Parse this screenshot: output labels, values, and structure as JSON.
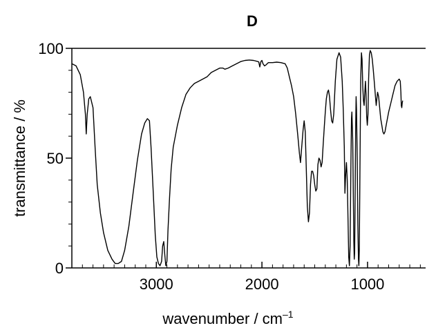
{
  "chart_data": {
    "type": "line",
    "title": "D",
    "xlabel": "wavenumber / cm",
    "xlabel_superscript": "–1",
    "ylabel": "transmittance / %",
    "x_reversed": true,
    "xlim": [
      3800,
      450
    ],
    "ylim": [
      0,
      100
    ],
    "x_ticks": [
      3000,
      2000,
      1000
    ],
    "x_tick_labels": [
      "3000",
      "2000",
      "1000"
    ],
    "x_minor_step": 100,
    "y_ticks": [
      0,
      50,
      100
    ],
    "y_tick_labels": [
      "0",
      "50",
      "100"
    ],
    "y_minor_step": 10,
    "grid": false,
    "legend": "none",
    "line_color": "#000000",
    "series": [
      {
        "values": [
          [
            3800,
            93
          ],
          [
            3760,
            92
          ],
          [
            3720,
            88
          ],
          [
            3690,
            80
          ],
          [
            3672,
            70
          ],
          [
            3664,
            61
          ],
          [
            3655,
            70
          ],
          [
            3640,
            77
          ],
          [
            3625,
            78
          ],
          [
            3600,
            73
          ],
          [
            3580,
            55
          ],
          [
            3560,
            38
          ],
          [
            3530,
            25
          ],
          [
            3500,
            16
          ],
          [
            3460,
            8
          ],
          [
            3420,
            4
          ],
          [
            3390,
            2
          ],
          [
            3360,
            2
          ],
          [
            3330,
            3
          ],
          [
            3300,
            8
          ],
          [
            3260,
            19
          ],
          [
            3220,
            34
          ],
          [
            3180,
            49
          ],
          [
            3140,
            61
          ],
          [
            3110,
            66
          ],
          [
            3085,
            68
          ],
          [
            3065,
            67
          ],
          [
            3050,
            55
          ],
          [
            3030,
            35
          ],
          [
            3010,
            15
          ],
          [
            2995,
            5
          ],
          [
            2980,
            2
          ],
          [
            2965,
            1
          ],
          [
            2950,
            3
          ],
          [
            2940,
            10
          ],
          [
            2930,
            12
          ],
          [
            2920,
            6
          ],
          [
            2910,
            1
          ],
          [
            2900,
            3
          ],
          [
            2890,
            17
          ],
          [
            2875,
            32
          ],
          [
            2860,
            45
          ],
          [
            2840,
            55
          ],
          [
            2800,
            65
          ],
          [
            2760,
            73
          ],
          [
            2720,
            79
          ],
          [
            2680,
            82
          ],
          [
            2640,
            84
          ],
          [
            2600,
            85
          ],
          [
            2560,
            86
          ],
          [
            2520,
            87
          ],
          [
            2480,
            89
          ],
          [
            2440,
            90
          ],
          [
            2400,
            91
          ],
          [
            2370,
            91
          ],
          [
            2350,
            90.5
          ],
          [
            2320,
            91
          ],
          [
            2280,
            92
          ],
          [
            2240,
            93
          ],
          [
            2200,
            94
          ],
          [
            2160,
            94.5
          ],
          [
            2120,
            94.7
          ],
          [
            2080,
            94.5
          ],
          [
            2040,
            94
          ],
          [
            2030,
            93.8
          ],
          [
            2020,
            91.5
          ],
          [
            2010,
            94
          ],
          [
            2000,
            94.5
          ],
          [
            1990,
            93
          ],
          [
            1975,
            92
          ],
          [
            1960,
            92.5
          ],
          [
            1940,
            93.5
          ],
          [
            1900,
            93.5
          ],
          [
            1860,
            93.7
          ],
          [
            1820,
            93.5
          ],
          [
            1780,
            93
          ],
          [
            1760,
            91
          ],
          [
            1740,
            87
          ],
          [
            1720,
            83
          ],
          [
            1700,
            78
          ],
          [
            1680,
            70
          ],
          [
            1660,
            60
          ],
          [
            1645,
            52
          ],
          [
            1635,
            48
          ],
          [
            1625,
            54
          ],
          [
            1610,
            63
          ],
          [
            1600,
            67
          ],
          [
            1590,
            62
          ],
          [
            1580,
            45
          ],
          [
            1570,
            28
          ],
          [
            1560,
            21
          ],
          [
            1550,
            25
          ],
          [
            1540,
            38
          ],
          [
            1530,
            44
          ],
          [
            1520,
            44
          ],
          [
            1510,
            42
          ],
          [
            1500,
            38
          ],
          [
            1490,
            35
          ],
          [
            1480,
            36
          ],
          [
            1470,
            47
          ],
          [
            1460,
            50
          ],
          [
            1450,
            49
          ],
          [
            1440,
            46
          ],
          [
            1430,
            48
          ],
          [
            1420,
            56
          ],
          [
            1410,
            64
          ],
          [
            1400,
            71
          ],
          [
            1390,
            77
          ],
          [
            1380,
            80
          ],
          [
            1370,
            81
          ],
          [
            1360,
            78
          ],
          [
            1350,
            72
          ],
          [
            1340,
            67
          ],
          [
            1330,
            66
          ],
          [
            1320,
            70
          ],
          [
            1305,
            85
          ],
          [
            1290,
            95
          ],
          [
            1270,
            98
          ],
          [
            1255,
            96
          ],
          [
            1240,
            85
          ],
          [
            1230,
            72
          ],
          [
            1220,
            55
          ],
          [
            1214,
            34
          ],
          [
            1208,
            42
          ],
          [
            1200,
            48
          ],
          [
            1192,
            40
          ],
          [
            1185,
            22
          ],
          [
            1178,
            5
          ],
          [
            1172,
            1
          ],
          [
            1165,
            10
          ],
          [
            1158,
            45
          ],
          [
            1152,
            68
          ],
          [
            1148,
            71
          ],
          [
            1140,
            58
          ],
          [
            1135,
            35
          ],
          [
            1130,
            12
          ],
          [
            1126,
            4
          ],
          [
            1122,
            7
          ],
          [
            1118,
            30
          ],
          [
            1112,
            65
          ],
          [
            1108,
            78
          ],
          [
            1104,
            72
          ],
          [
            1098,
            50
          ],
          [
            1092,
            20
          ],
          [
            1086,
            4
          ],
          [
            1082,
            1
          ],
          [
            1078,
            8
          ],
          [
            1072,
            42
          ],
          [
            1065,
            85
          ],
          [
            1058,
            98
          ],
          [
            1052,
            95
          ],
          [
            1045,
            82
          ],
          [
            1038,
            76
          ],
          [
            1032,
            74
          ],
          [
            1026,
            80
          ],
          [
            1020,
            85
          ],
          [
            1014,
            79
          ],
          [
            1008,
            69
          ],
          [
            1002,
            65
          ],
          [
            996,
            70
          ],
          [
            990,
            86
          ],
          [
            982,
            97
          ],
          [
            975,
            99
          ],
          [
            965,
            98
          ],
          [
            955,
            95
          ],
          [
            945,
            90
          ],
          [
            935,
            84
          ],
          [
            925,
            78
          ],
          [
            918,
            74
          ],
          [
            912,
            77
          ],
          [
            905,
            80
          ],
          [
            895,
            78
          ],
          [
            885,
            73
          ],
          [
            875,
            68
          ],
          [
            865,
            65
          ],
          [
            855,
            62
          ],
          [
            845,
            61
          ],
          [
            835,
            62
          ],
          [
            820,
            66
          ],
          [
            800,
            71
          ],
          [
            780,
            75
          ],
          [
            760,
            79
          ],
          [
            740,
            83
          ],
          [
            720,
            85
          ],
          [
            700,
            86
          ],
          [
            690,
            85
          ],
          [
            684,
            80
          ],
          [
            680,
            74
          ],
          [
            676,
            73
          ],
          [
            672,
            75
          ],
          [
            668,
            76
          ],
          [
            664,
            76
          ]
        ]
      }
    ]
  }
}
